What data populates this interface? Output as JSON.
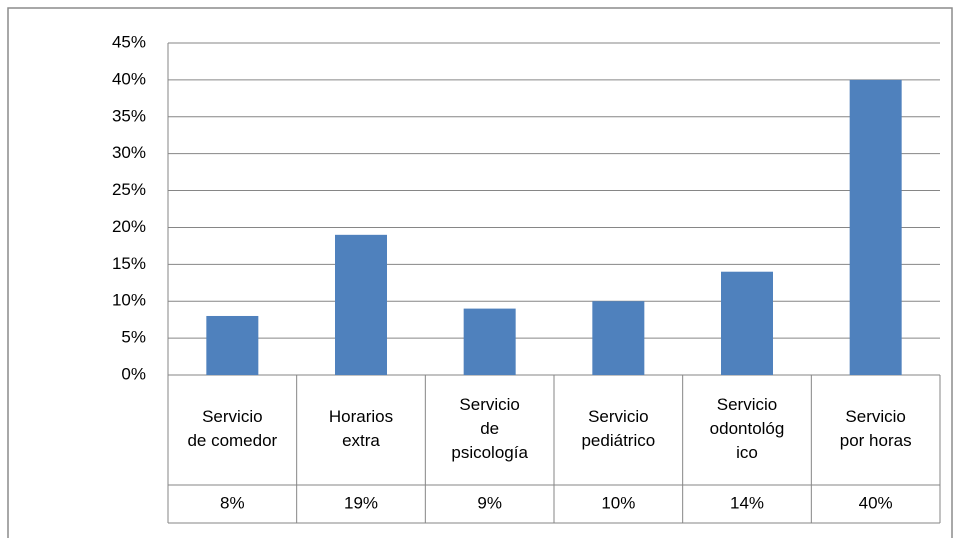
{
  "chart_data": {
    "type": "bar",
    "categories": [
      "Servicio de comedor",
      "Horarios extra",
      "Servicio de psicología",
      "Servicio pediátrico",
      "Servicio odontológico",
      "Servicio por horas"
    ],
    "values": [
      8,
      19,
      9,
      10,
      14,
      40
    ],
    "value_labels": [
      "8%",
      "19%",
      "9%",
      "10%",
      "14%",
      "40%"
    ],
    "color": "#4f81bd",
    "ylim": [
      0,
      45
    ],
    "yticks": [
      {
        "value": 0,
        "label": "0%"
      },
      {
        "value": 5,
        "label": "5%"
      },
      {
        "value": 10,
        "label": "10%"
      },
      {
        "value": 15,
        "label": "15%"
      },
      {
        "value": 20,
        "label": "20%"
      },
      {
        "value": 25,
        "label": "25%"
      },
      {
        "value": 30,
        "label": "30%"
      },
      {
        "value": 35,
        "label": "35%"
      },
      {
        "value": 40,
        "label": "40%"
      },
      {
        "value": 45,
        "label": "45%"
      }
    ],
    "grid": true
  }
}
